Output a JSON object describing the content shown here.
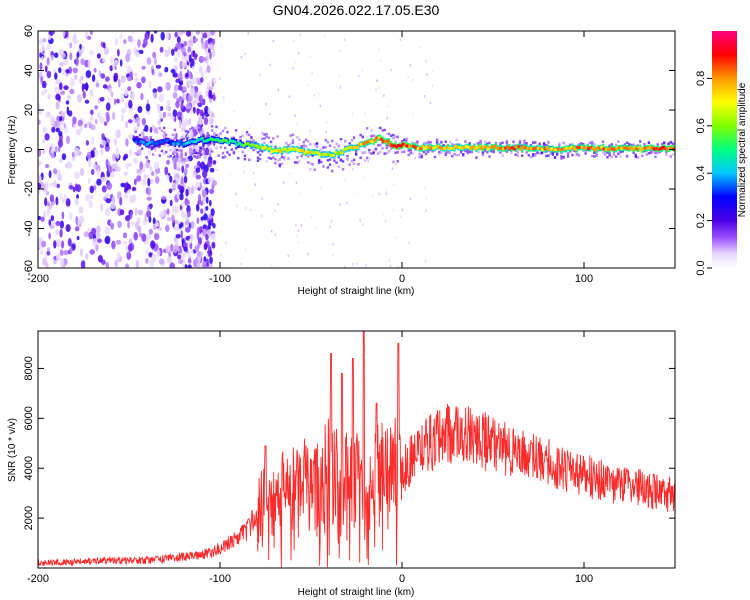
{
  "title": "GN04.2026.022.17.05.E30",
  "chart_data": [
    {
      "type": "heatmap",
      "xlabel": "Height of straight line (km)",
      "ylabel": "Frequency (Hz)",
      "xlim": [
        -200,
        150
      ],
      "ylim": [
        -60,
        60
      ],
      "x_ticks": [
        -200,
        -100,
        0,
        100
      ],
      "y_ticks": [
        -60,
        -40,
        -20,
        0,
        20,
        40,
        60
      ],
      "colorbar": {
        "label": "Normalized spectral amplitude",
        "range": [
          0.0,
          1.0
        ],
        "ticks": [
          0.0,
          0.2,
          0.4,
          0.6,
          0.8
        ],
        "tick_labels": [
          "0.0",
          "0.2",
          "0.4",
          "0.6",
          "0.8"
        ]
      },
      "noise_region_x": [
        -200,
        -103
      ],
      "ridge": {
        "x": [
          -147,
          -140,
          -130,
          -120,
          -110,
          -100,
          -90,
          -80,
          -70,
          -60,
          -50,
          -40,
          -30,
          -20,
          -12,
          -5,
          0,
          10,
          30,
          50,
          80,
          110,
          150
        ],
        "frequency": [
          4,
          3,
          4,
          3,
          5,
          5,
          3,
          2,
          -1,
          0,
          -2,
          -3,
          0,
          3,
          6,
          2,
          2,
          1,
          1,
          1,
          0.5,
          0.5,
          0.5
        ],
        "amplitude": [
          0.35,
          0.4,
          0.35,
          0.45,
          0.5,
          0.6,
          0.55,
          0.7,
          0.8,
          0.75,
          0.8,
          0.7,
          0.75,
          0.85,
          0.9,
          0.95,
          1.0,
          0.85,
          0.8,
          0.9,
          0.85,
          0.9,
          0.95
        ]
      }
    },
    {
      "type": "line",
      "xlabel": "Height of straight line (km)",
      "ylabel": "SNR (10 * v/v)",
      "xlim": [
        -200,
        150
      ],
      "ylim": [
        0,
        9500
      ],
      "x_ticks": [
        -200,
        -100,
        0,
        100
      ],
      "y_ticks": [
        2000,
        4000,
        6000,
        8000
      ],
      "color": "#ff2a2a",
      "series": [
        {
          "x": [
            -200,
            -180,
            -160,
            -140,
            -120,
            -105,
            -95,
            -85,
            -78,
            -70,
            -62,
            -55,
            -50,
            -45,
            -40,
            -35,
            -30,
            -25,
            -20,
            -15,
            -10,
            -5,
            0,
            5,
            10,
            15,
            20,
            25,
            30,
            35,
            40,
            50,
            60,
            70,
            80,
            90,
            100,
            110,
            120,
            130,
            140,
            150
          ],
          "y": [
            200,
            250,
            300,
            300,
            450,
            600,
            1000,
            1500,
            2500,
            2800,
            3200,
            3500,
            3000,
            3800,
            4000,
            3500,
            3500,
            3500,
            3200,
            3600,
            4000,
            4200,
            3800,
            4400,
            4600,
            5000,
            5200,
            5400,
            5500,
            5400,
            5200,
            5000,
            4600,
            4400,
            4200,
            3900,
            3700,
            3500,
            3300,
            3200,
            3000,
            2900
          ]
        }
      ],
      "peaks": [
        {
          "x": -75,
          "y": 4900
        },
        {
          "x": -39,
          "y": 8600
        },
        {
          "x": -33,
          "y": 7800
        },
        {
          "x": -27,
          "y": 8400
        },
        {
          "x": -21,
          "y": 9500
        },
        {
          "x": -14,
          "y": 6600
        },
        {
          "x": -2,
          "y": 9000
        }
      ]
    }
  ]
}
